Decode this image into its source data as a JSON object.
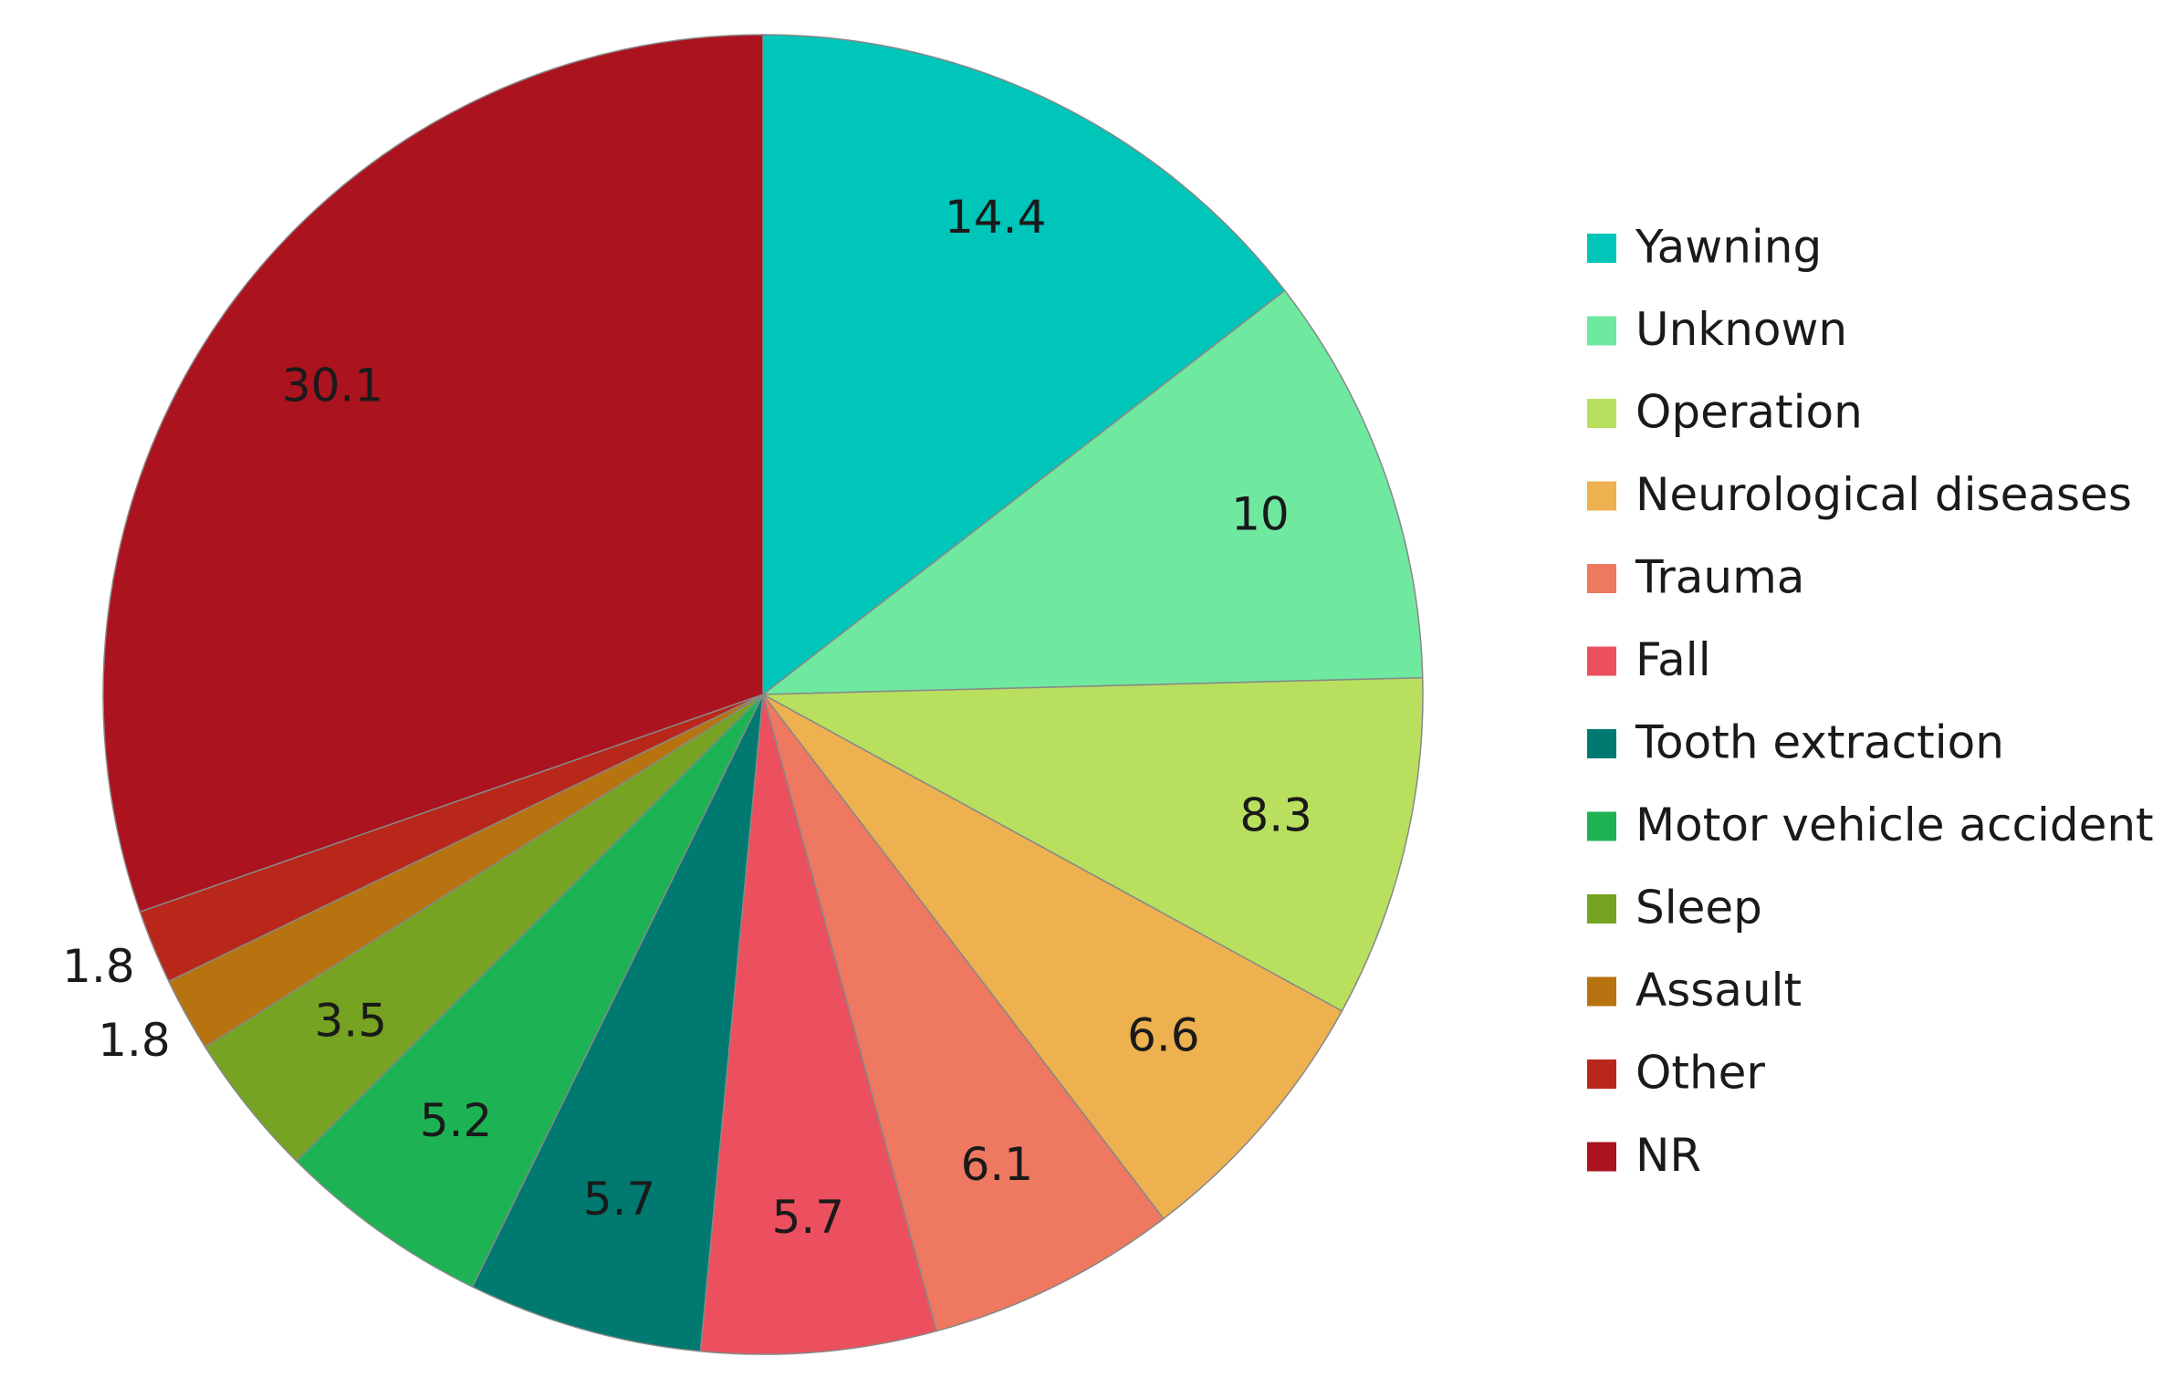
{
  "chart_data": {
    "type": "pie",
    "categories": [
      "Yawning",
      "Unknown",
      "Operation",
      "Neurological diseases",
      "Trauma",
      "Fall",
      "Tooth extraction",
      "Motor vehicle accident",
      "Sleep",
      "Assault",
      "Other",
      "NR"
    ],
    "values": [
      14.4,
      10,
      8.3,
      6.6,
      6.1,
      5.7,
      5.7,
      5.2,
      3.5,
      1.8,
      1.8,
      30.1
    ],
    "colors": [
      "#00c5b9",
      "#6fe8a0",
      "#b8e05e",
      "#edb14f",
      "#ee7860",
      "#ec505e",
      "#007a70",
      "#1db354",
      "#76a321",
      "#b7730f",
      "#b9271a",
      "#ab131e"
    ],
    "legend": "right"
  }
}
